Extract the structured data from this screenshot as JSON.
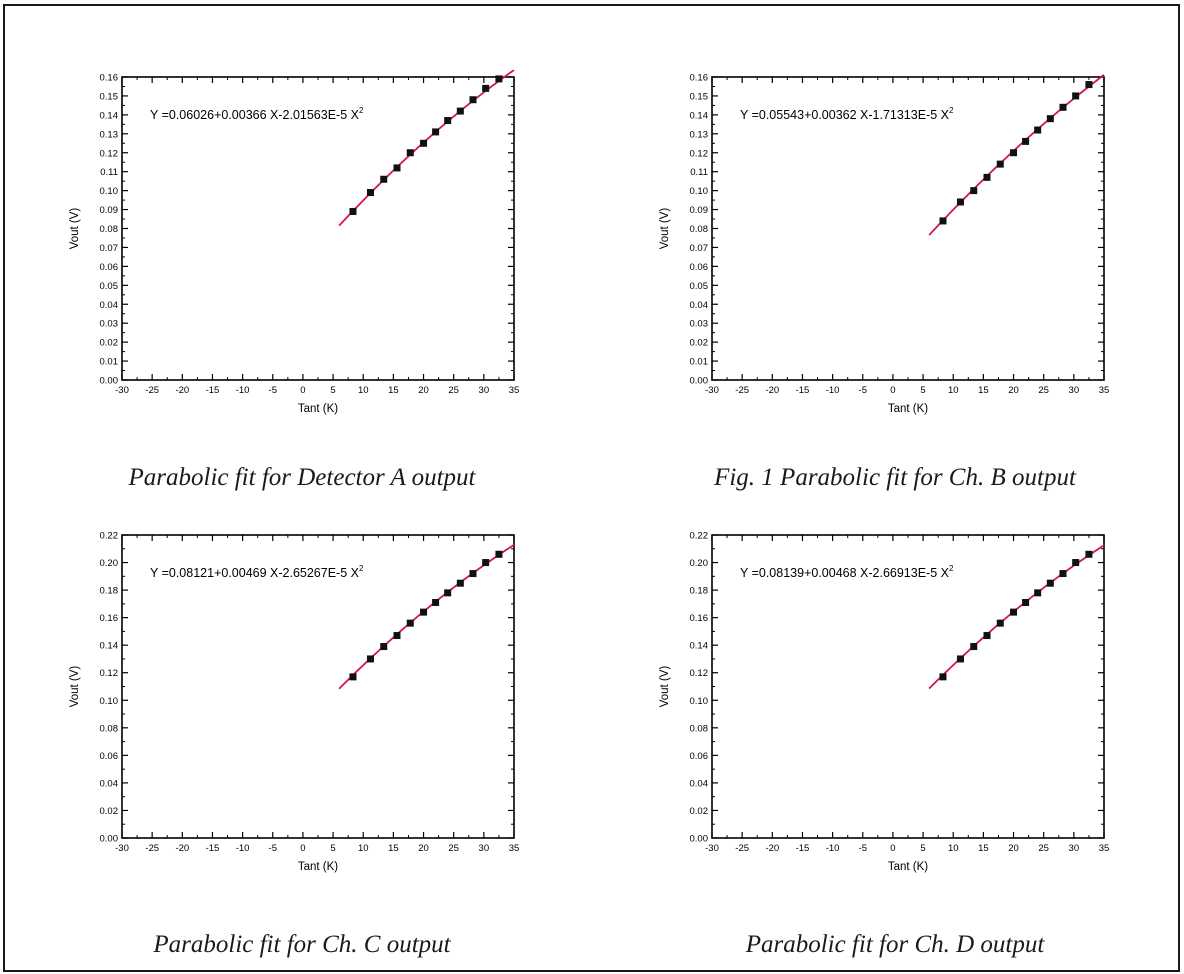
{
  "captions": [
    "Parabolic fit for Detector A output",
    "Fig. 1 Parabolic fit for Ch. B output",
    "Parabolic fit for Ch. C output",
    "Parabolic fit for Ch. D output"
  ],
  "colors": {
    "fit_curve": "#d4145a",
    "marker": "#111111",
    "axis": "#000000"
  },
  "chart_data": [
    {
      "type": "scatter",
      "xlabel": "Tant (K)",
      "ylabel": "Vout (V)",
      "xlim": [
        -30,
        35
      ],
      "ylim": [
        0,
        0.16
      ],
      "xticks": [
        -30,
        -25,
        -20,
        -15,
        -10,
        -5,
        0,
        5,
        10,
        15,
        20,
        25,
        30,
        35
      ],
      "yticks": [
        0.0,
        0.01,
        0.02,
        0.03,
        0.04,
        0.05,
        0.06,
        0.07,
        0.08,
        0.09,
        0.1,
        0.11,
        0.12,
        0.13,
        0.14,
        0.15,
        0.16
      ],
      "ytick_decimals": 2,
      "annotation": "Y =0.06026+0.00366 X-2.01563E-5 X",
      "annotation_sup": "2",
      "fit": {
        "a": 0.06026,
        "b": 0.00366,
        "c": -2.01563e-05,
        "x_range": [
          6,
          35
        ]
      },
      "points": {
        "x": [
          8.3,
          11.2,
          13.4,
          15.6,
          17.8,
          20.0,
          22.0,
          24.0,
          26.1,
          28.2,
          30.3,
          32.5
        ],
        "y": [
          0.089,
          0.099,
          0.106,
          0.112,
          0.12,
          0.125,
          0.131,
          0.137,
          0.142,
          0.148,
          0.154,
          0.159
        ]
      },
      "grid": false
    },
    {
      "type": "scatter",
      "xlabel": "Tant (K)",
      "ylabel": "Vout (V)",
      "xlim": [
        -30,
        35
      ],
      "ylim": [
        0,
        0.16
      ],
      "xticks": [
        -30,
        -25,
        -20,
        -15,
        -10,
        -5,
        0,
        5,
        10,
        15,
        20,
        25,
        30,
        35
      ],
      "yticks": [
        0.0,
        0.01,
        0.02,
        0.03,
        0.04,
        0.05,
        0.06,
        0.07,
        0.08,
        0.09,
        0.1,
        0.11,
        0.12,
        0.13,
        0.14,
        0.15,
        0.16
      ],
      "ytick_decimals": 2,
      "annotation": "Y =0.05543+0.00362 X-1.71313E-5 X",
      "annotation_sup": "2",
      "fit": {
        "a": 0.05543,
        "b": 0.00362,
        "c": -1.71313e-05,
        "x_range": [
          6,
          35
        ]
      },
      "points": {
        "x": [
          8.3,
          11.2,
          13.4,
          15.6,
          17.8,
          20.0,
          22.0,
          24.0,
          26.1,
          28.2,
          30.3,
          32.5
        ],
        "y": [
          0.084,
          0.094,
          0.1,
          0.107,
          0.114,
          0.12,
          0.126,
          0.132,
          0.138,
          0.144,
          0.15,
          0.156
        ]
      },
      "grid": false
    },
    {
      "type": "scatter",
      "xlabel": "Tant (K)",
      "ylabel": "Vout (V)",
      "xlim": [
        -30,
        35
      ],
      "ylim": [
        0,
        0.22
      ],
      "xticks": [
        -30,
        -25,
        -20,
        -15,
        -10,
        -5,
        0,
        5,
        10,
        15,
        20,
        25,
        30,
        35
      ],
      "yticks": [
        0.0,
        0.02,
        0.04,
        0.06,
        0.08,
        0.1,
        0.12,
        0.14,
        0.16,
        0.18,
        0.2,
        0.22
      ],
      "ytick_decimals": 2,
      "annotation": "Y =0.08121+0.00469 X-2.65267E-5 X",
      "annotation_sup": "2",
      "fit": {
        "a": 0.08121,
        "b": 0.00469,
        "c": -2.65267e-05,
        "x_range": [
          6,
          35
        ]
      },
      "points": {
        "x": [
          8.3,
          11.2,
          13.4,
          15.6,
          17.8,
          20.0,
          22.0,
          24.0,
          26.1,
          28.2,
          30.3,
          32.5
        ],
        "y": [
          0.117,
          0.13,
          0.139,
          0.147,
          0.156,
          0.164,
          0.171,
          0.178,
          0.185,
          0.192,
          0.2,
          0.206
        ]
      },
      "grid": false
    },
    {
      "type": "scatter",
      "xlabel": "Tant (K)",
      "ylabel": "Vout (V)",
      "xlim": [
        -30,
        35
      ],
      "ylim": [
        0,
        0.22
      ],
      "xticks": [
        -30,
        -25,
        -20,
        -15,
        -10,
        -5,
        0,
        5,
        10,
        15,
        20,
        25,
        30,
        35
      ],
      "yticks": [
        0.0,
        0.02,
        0.04,
        0.06,
        0.08,
        0.1,
        0.12,
        0.14,
        0.16,
        0.18,
        0.2,
        0.22
      ],
      "ytick_decimals": 2,
      "annotation": "Y =0.08139+0.00468 X-2.66913E-5 X",
      "annotation_sup": "2",
      "fit": {
        "a": 0.08139,
        "b": 0.00468,
        "c": -2.66913e-05,
        "x_range": [
          6,
          35
        ]
      },
      "points": {
        "x": [
          8.3,
          11.2,
          13.4,
          15.6,
          17.8,
          20.0,
          22.0,
          24.0,
          26.1,
          28.2,
          30.3,
          32.5
        ],
        "y": [
          0.117,
          0.13,
          0.139,
          0.147,
          0.156,
          0.164,
          0.171,
          0.178,
          0.185,
          0.192,
          0.2,
          0.206
        ]
      },
      "grid": false
    }
  ]
}
